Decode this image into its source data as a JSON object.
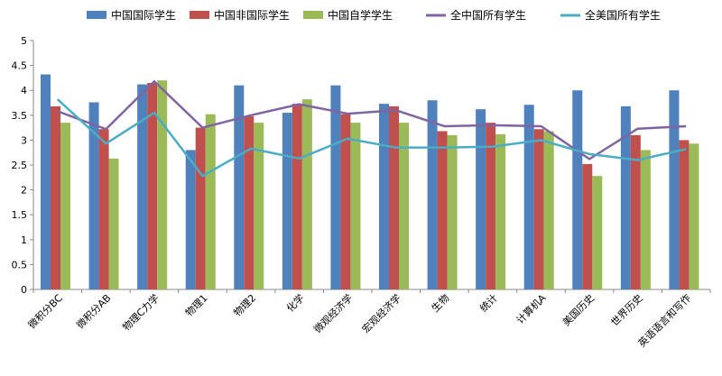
{
  "chart_data": {
    "type": "bar",
    "categories": [
      "微积分BC",
      "微积分AB",
      "物理C力学",
      "物理1",
      "物理2",
      "化学",
      "微观经济学",
      "宏观经济学",
      "生物",
      "统计",
      "计算机A",
      "美国历史",
      "世界历史",
      "英语语言和写作"
    ],
    "ylim": [
      0,
      5
    ],
    "yticks": [
      "0",
      "0.5",
      "1",
      "1.5",
      "2",
      "2.5",
      "3",
      "3.5",
      "4",
      "4.5",
      "5"
    ],
    "grid": false,
    "legend_position": "top",
    "bar_series": [
      {
        "name": "中国国际学生",
        "color": "#4F81BD",
        "values": [
          4.32,
          3.76,
          4.12,
          2.8,
          4.1,
          3.55,
          4.1,
          3.73,
          3.8,
          3.62,
          3.71,
          4.0,
          3.68,
          4.0
        ]
      },
      {
        "name": "中国非国际学生",
        "color": "#C0504D",
        "values": [
          3.68,
          3.22,
          4.15,
          3.25,
          3.48,
          3.73,
          3.52,
          3.68,
          3.18,
          3.35,
          3.22,
          2.52,
          3.1,
          3.0
        ]
      },
      {
        "name": "中国自学学生",
        "color": "#9BBB59",
        "values": [
          3.35,
          2.63,
          4.2,
          3.52,
          3.35,
          3.82,
          3.35,
          3.35,
          3.1,
          3.12,
          3.18,
          2.28,
          2.8,
          2.93
        ]
      }
    ],
    "line_series": [
      {
        "name": "全中国所有学生",
        "color": "#8064A2",
        "values": [
          3.58,
          3.22,
          4.18,
          3.25,
          3.5,
          3.72,
          3.53,
          3.6,
          3.28,
          3.3,
          3.28,
          2.62,
          3.23,
          3.28
        ]
      },
      {
        "name": "全美国所有学生",
        "color": "#4BACC6",
        "values": [
          3.82,
          2.93,
          3.55,
          2.28,
          2.83,
          2.63,
          3.03,
          2.85,
          2.85,
          2.87,
          3.0,
          2.72,
          2.6,
          2.82
        ]
      }
    ]
  }
}
